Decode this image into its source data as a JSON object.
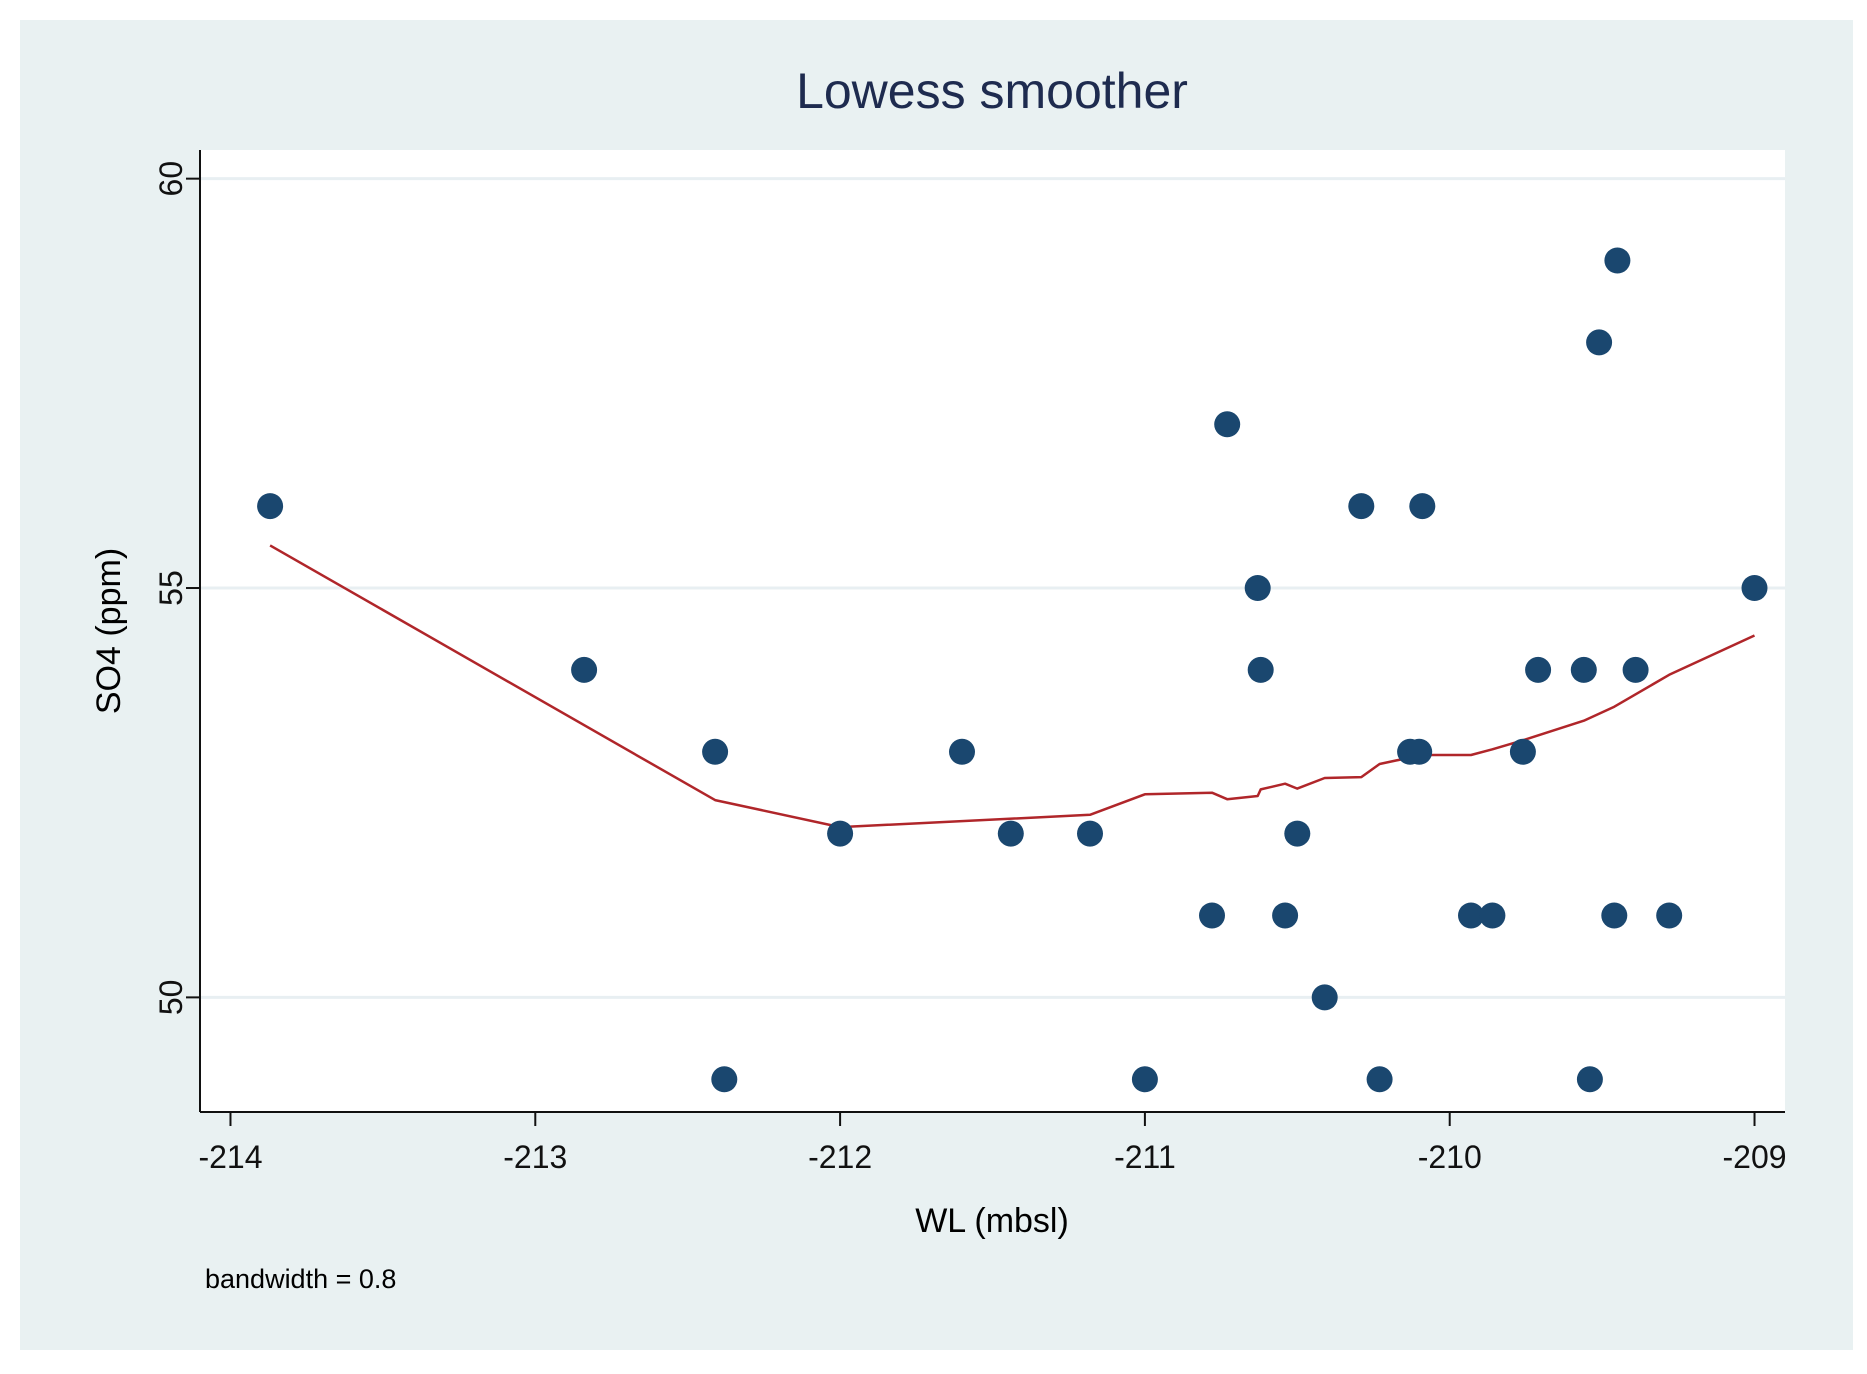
{
  "colors": {
    "outer_bg": "#e9f1f2",
    "plot_bg": "#ffffff",
    "grid": "#e8eff2",
    "axis": "#111111",
    "marker": "#1a476f",
    "line": "#b0262a",
    "title": "#1e2b4f"
  },
  "chart_data": {
    "type": "scatter",
    "title": "Lowess smoother",
    "xlabel": "WL (mbsl)",
    "ylabel": "SO4 (ppm)",
    "note": "bandwidth = 0.8",
    "xlim": [
      -214.1,
      -208.9
    ],
    "ylim": [
      48.6,
      60.35
    ],
    "xticks": [
      -214,
      -213,
      -212,
      -211,
      -210,
      -209
    ],
    "xtick_labels": [
      "-214",
      "-213",
      "-212",
      "-211",
      "-210",
      "-209"
    ],
    "yticks": [
      50,
      55,
      60
    ],
    "ytick_labels": [
      "50",
      "55",
      "60"
    ],
    "grid": true,
    "series": [
      {
        "name": "SO4",
        "kind": "scatter",
        "points": [
          {
            "x": -213.87,
            "y": 56
          },
          {
            "x": -212.84,
            "y": 54
          },
          {
            "x": -212.41,
            "y": 53
          },
          {
            "x": -212.38,
            "y": 49
          },
          {
            "x": -212.0,
            "y": 52
          },
          {
            "x": -211.6,
            "y": 53
          },
          {
            "x": -211.44,
            "y": 52
          },
          {
            "x": -211.18,
            "y": 52
          },
          {
            "x": -211.0,
            "y": 49
          },
          {
            "x": -210.78,
            "y": 51
          },
          {
            "x": -210.73,
            "y": 57
          },
          {
            "x": -210.63,
            "y": 55
          },
          {
            "x": -210.62,
            "y": 54
          },
          {
            "x": -210.54,
            "y": 51
          },
          {
            "x": -210.5,
            "y": 52
          },
          {
            "x": -210.41,
            "y": 50
          },
          {
            "x": -210.29,
            "y": 56
          },
          {
            "x": -210.23,
            "y": 49
          },
          {
            "x": -210.13,
            "y": 53
          },
          {
            "x": -210.1,
            "y": 53
          },
          {
            "x": -210.09,
            "y": 56
          },
          {
            "x": -209.93,
            "y": 51
          },
          {
            "x": -209.86,
            "y": 51
          },
          {
            "x": -209.76,
            "y": 53
          },
          {
            "x": -209.71,
            "y": 54
          },
          {
            "x": -209.56,
            "y": 54
          },
          {
            "x": -209.54,
            "y": 49
          },
          {
            "x": -209.51,
            "y": 58
          },
          {
            "x": -209.46,
            "y": 51
          },
          {
            "x": -209.45,
            "y": 59
          },
          {
            "x": -209.39,
            "y": 54
          },
          {
            "x": -209.28,
            "y": 51
          },
          {
            "x": -209.0,
            "y": 55
          }
        ]
      },
      {
        "name": "lowess smoother",
        "kind": "line",
        "points": [
          {
            "x": -213.87,
            "y": 55.52
          },
          {
            "x": -212.41,
            "y": 52.41
          },
          {
            "x": -212.0,
            "y": 52.08
          },
          {
            "x": -211.18,
            "y": 52.23
          },
          {
            "x": -211.0,
            "y": 52.48
          },
          {
            "x": -210.78,
            "y": 52.5
          },
          {
            "x": -210.73,
            "y": 52.42
          },
          {
            "x": -210.63,
            "y": 52.46
          },
          {
            "x": -210.62,
            "y": 52.54
          },
          {
            "x": -210.54,
            "y": 52.61
          },
          {
            "x": -210.5,
            "y": 52.55
          },
          {
            "x": -210.41,
            "y": 52.68
          },
          {
            "x": -210.29,
            "y": 52.69
          },
          {
            "x": -210.23,
            "y": 52.85
          },
          {
            "x": -210.13,
            "y": 52.93
          },
          {
            "x": -210.09,
            "y": 52.96
          },
          {
            "x": -210.1,
            "y": 52.96
          },
          {
            "x": -209.93,
            "y": 52.96
          },
          {
            "x": -209.86,
            "y": 53.03
          },
          {
            "x": -209.76,
            "y": 53.14
          },
          {
            "x": -209.56,
            "y": 53.38
          },
          {
            "x": -209.46,
            "y": 53.55
          },
          {
            "x": -209.28,
            "y": 53.94
          },
          {
            "x": -209.0,
            "y": 54.42
          }
        ]
      }
    ]
  }
}
